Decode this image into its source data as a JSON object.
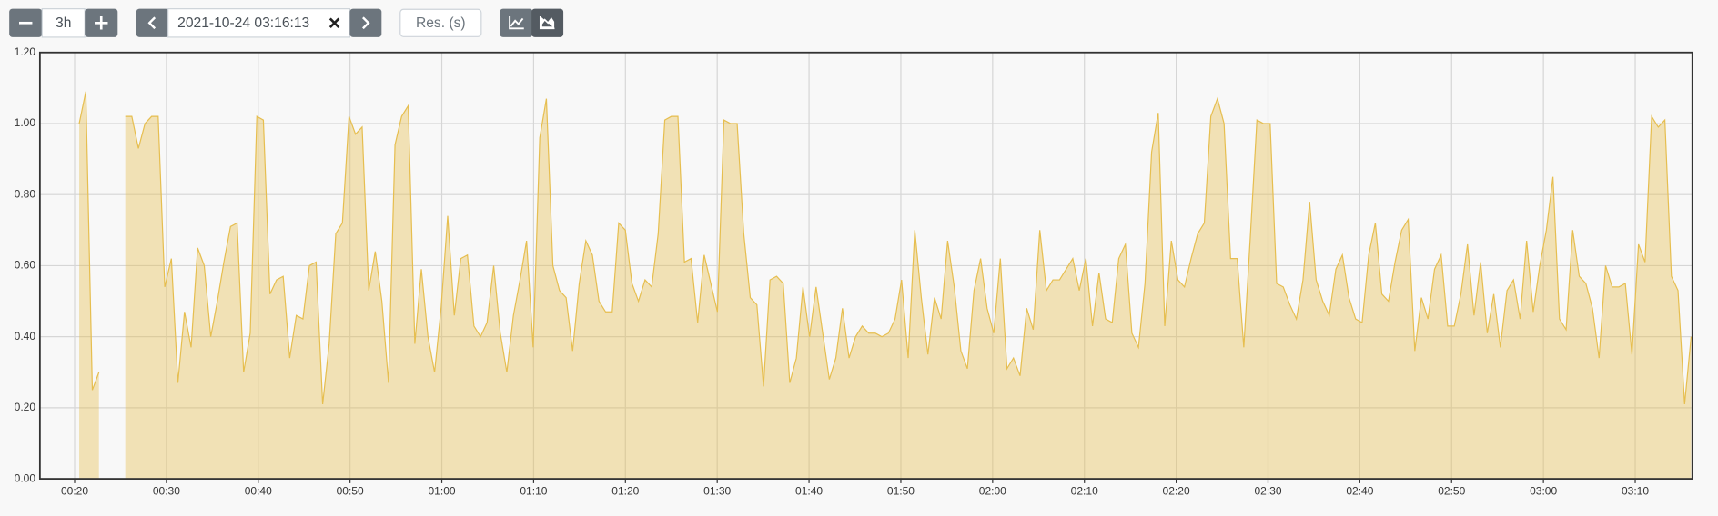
{
  "toolbar": {
    "range": "3h",
    "end_time": "2021-10-24 03:16:13",
    "resolution_placeholder": "Res. (s)"
  },
  "chart_data": {
    "type": "area",
    "color": "#e6be4f",
    "xlim": [
      16.22,
      196.22
    ],
    "xticks": [
      {
        "value": 20,
        "label": "00:20"
      },
      {
        "value": 30,
        "label": "00:30"
      },
      {
        "value": 40,
        "label": "00:40"
      },
      {
        "value": 50,
        "label": "00:50"
      },
      {
        "value": 60,
        "label": "01:00"
      },
      {
        "value": 70,
        "label": "01:10"
      },
      {
        "value": 80,
        "label": "01:20"
      },
      {
        "value": 90,
        "label": "01:30"
      },
      {
        "value": 100,
        "label": "01:40"
      },
      {
        "value": 110,
        "label": "01:50"
      },
      {
        "value": 120,
        "label": "02:00"
      },
      {
        "value": 130,
        "label": "02:10"
      },
      {
        "value": 140,
        "label": "02:20"
      },
      {
        "value": 150,
        "label": "02:30"
      },
      {
        "value": 160,
        "label": "02:40"
      },
      {
        "value": 170,
        "label": "02:50"
      },
      {
        "value": 180,
        "label": "03:00"
      },
      {
        "value": 190,
        "label": "03:10"
      }
    ],
    "ylim": [
      0,
      1.2
    ],
    "yticks": [
      {
        "value": 0,
        "label": "0.00"
      },
      {
        "value": 0.2,
        "label": "0.20"
      },
      {
        "value": 0.4,
        "label": "0.40"
      },
      {
        "value": 0.6,
        "label": "0.60"
      },
      {
        "value": 0.8,
        "label": "0.80"
      },
      {
        "value": 1,
        "label": "1.00"
      },
      {
        "value": 1.2,
        "label": "1.20"
      }
    ],
    "grid": true,
    "x": [
      20.5,
      21.22,
      21.93,
      22.65,
      23.37,
      24.08,
      24.8,
      25.52,
      26.23,
      26.95,
      27.67,
      28.39,
      29.1,
      29.82,
      30.54,
      31.25,
      31.97,
      32.69,
      33.4,
      34.12,
      34.83,
      35.55,
      36.26,
      36.98,
      37.7,
      38.41,
      39.13,
      39.85,
      40.56,
      41.28,
      42.0,
      42.72,
      43.43,
      44.15,
      44.87,
      45.58,
      46.3,
      47.02,
      47.73,
      48.45,
      49.17,
      49.89,
      50.6,
      51.32,
      52.04,
      52.75,
      53.47,
      54.19,
      54.9,
      55.62,
      56.34,
      57.06,
      57.77,
      58.49,
      59.21,
      59.92,
      60.64,
      61.36,
      62.07,
      62.79,
      63.5,
      64.22,
      64.93,
      65.65,
      66.37,
      67.08,
      67.8,
      68.52,
      69.23,
      69.95,
      70.67,
      71.39,
      72.1,
      72.82,
      73.54,
      74.25,
      74.97,
      75.69,
      76.4,
      77.12,
      77.84,
      78.56,
      79.27,
      79.99,
      80.71,
      81.42,
      82.14,
      82.86,
      83.57,
      84.29,
      85.0,
      85.72,
      86.43,
      87.15,
      87.87,
      88.58,
      89.3,
      90.02,
      90.73,
      91.45,
      92.17,
      92.89,
      93.6,
      94.32,
      95.04,
      95.75,
      96.47,
      97.19,
      97.9,
      98.62,
      99.34,
      100.06,
      100.77,
      101.49,
      102.21,
      102.92,
      103.64,
      104.36,
      105.07,
      105.79,
      106.5,
      107.22,
      107.93,
      108.65,
      109.37,
      110.08,
      110.8,
      111.52,
      112.23,
      112.95,
      113.67,
      114.39,
      115.1,
      115.82,
      116.54,
      117.25,
      117.97,
      118.69,
      119.4,
      120.12,
      120.84,
      121.56,
      122.27,
      122.99,
      123.71,
      124.42,
      125.14,
      125.86,
      126.57,
      127.29,
      128.01,
      128.73,
      129.44,
      130.16,
      130.88,
      131.59,
      132.31,
      133.03,
      133.74,
      134.46,
      135.17,
      135.89,
      136.6,
      137.32,
      138.04,
      138.75,
      139.47,
      140.19,
      140.9,
      141.62,
      142.34,
      143.06,
      143.77,
      144.49,
      145.21,
      145.92,
      146.64,
      147.36,
      148.07,
      148.79,
      149.51,
      150.23,
      150.94,
      151.66,
      152.38,
      153.09,
      153.81,
      154.53,
      155.24,
      155.96,
      156.67,
      157.39,
      158.1,
      158.82,
      159.54,
      160.25,
      160.97,
      161.69,
      162.4,
      163.12,
      163.84,
      164.56,
      165.27,
      165.99,
      166.71,
      167.42,
      168.14,
      168.86,
      169.57,
      170.29,
      171.01,
      171.73,
      172.44,
      173.16,
      173.88,
      174.59,
      175.31,
      176.03,
      176.74,
      177.46,
      178.17,
      178.89,
      179.6,
      180.32,
      181.04,
      181.75,
      182.47,
      183.19,
      183.9,
      184.62,
      185.34,
      186.06,
      186.77,
      187.49,
      188.21,
      188.92,
      189.64,
      190.36,
      191.07,
      191.79,
      192.51,
      193.23,
      193.94,
      194.66,
      195.38,
      196.09
    ],
    "values": [
      1.0,
      1.09,
      0.25,
      0.3,
      null,
      null,
      null,
      1.02,
      1.02,
      0.93,
      1.0,
      1.02,
      1.02,
      0.54,
      0.62,
      0.27,
      0.47,
      0.37,
      0.65,
      0.6,
      0.4,
      0.5,
      0.61,
      0.71,
      0.72,
      0.3,
      0.41,
      1.02,
      1.01,
      0.52,
      0.56,
      0.57,
      0.34,
      0.46,
      0.45,
      0.6,
      0.61,
      0.21,
      0.38,
      0.69,
      0.72,
      1.02,
      0.97,
      0.99,
      0.53,
      0.64,
      0.5,
      0.27,
      0.94,
      1.02,
      1.05,
      0.38,
      0.59,
      0.4,
      0.3,
      0.48,
      0.74,
      0.46,
      0.62,
      0.63,
      0.43,
      0.4,
      0.44,
      0.6,
      0.41,
      0.3,
      0.46,
      0.56,
      0.67,
      0.37,
      0.96,
      1.07,
      0.6,
      0.53,
      0.51,
      0.36,
      0.55,
      0.67,
      0.63,
      0.5,
      0.47,
      0.47,
      0.72,
      0.7,
      0.55,
      0.5,
      0.56,
      0.54,
      0.69,
      1.01,
      1.02,
      1.02,
      0.61,
      0.62,
      0.44,
      0.63,
      0.55,
      0.47,
      1.01,
      1.0,
      1.0,
      0.69,
      0.51,
      0.49,
      0.26,
      0.56,
      0.57,
      0.55,
      0.27,
      0.34,
      0.54,
      0.4,
      0.54,
      0.41,
      0.28,
      0.34,
      0.48,
      0.34,
      0.4,
      0.43,
      0.41,
      0.41,
      0.4,
      0.41,
      0.45,
      0.56,
      0.34,
      0.7,
      0.51,
      0.35,
      0.51,
      0.45,
      0.67,
      0.54,
      0.36,
      0.31,
      0.53,
      0.62,
      0.48,
      0.41,
      0.62,
      0.31,
      0.34,
      0.29,
      0.48,
      0.42,
      0.7,
      0.53,
      0.56,
      0.56,
      0.59,
      0.62,
      0.53,
      0.62,
      0.43,
      0.58,
      0.45,
      0.44,
      0.62,
      0.66,
      0.41,
      0.37,
      0.55,
      0.92,
      1.03,
      0.43,
      0.67,
      0.56,
      0.54,
      0.62,
      0.69,
      0.72,
      1.02,
      1.07,
      1.0,
      0.62,
      0.62,
      0.37,
      0.68,
      1.01,
      1.0,
      1.0,
      0.55,
      0.54,
      0.49,
      0.45,
      0.56,
      0.78,
      0.56,
      0.5,
      0.46,
      0.59,
      0.63,
      0.51,
      0.45,
      0.44,
      0.63,
      0.72,
      0.52,
      0.5,
      0.61,
      0.7,
      0.73,
      0.36,
      0.51,
      0.45,
      0.59,
      0.63,
      0.43,
      0.43,
      0.52,
      0.66,
      0.46,
      0.61,
      0.41,
      0.52,
      0.37,
      0.53,
      0.56,
      0.45,
      0.67,
      0.47,
      0.6,
      0.7,
      0.85,
      0.45,
      0.42,
      0.7,
      0.57,
      0.55,
      0.48,
      0.34,
      0.6,
      0.54,
      0.54,
      0.55,
      0.35,
      0.66,
      0.61,
      1.02,
      0.99,
      1.01,
      0.57,
      0.53,
      0.21,
      0.4
    ]
  }
}
